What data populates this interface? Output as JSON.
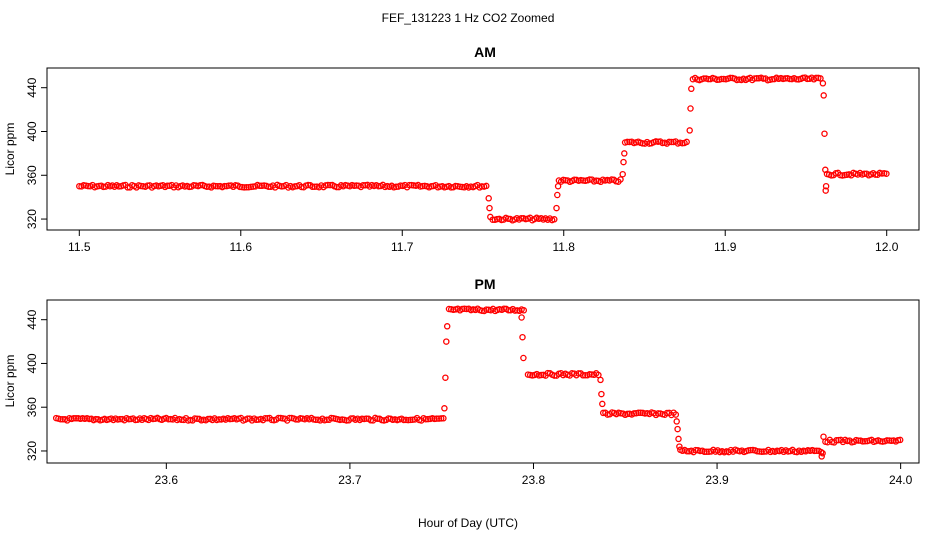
{
  "title": "FEF_131223  1 Hz CO2 Zoomed",
  "xlabel": "Hour of Day (UTC)",
  "chart_data": [
    {
      "type": "scatter",
      "title": "AM",
      "ylabel": "Licor ppm",
      "xlim": [
        11.48,
        12.02
      ],
      "ylim": [
        310,
        458
      ],
      "xticks": [
        11.5,
        11.6,
        11.7,
        11.8,
        11.9,
        12.0
      ],
      "xtick_labels": [
        "11.5",
        "11.6",
        "11.7",
        "11.8",
        "11.9",
        "12.0"
      ],
      "yticks": [
        320,
        360,
        400,
        440
      ],
      "ytick_labels": [
        "320",
        "360",
        "400",
        "440"
      ],
      "marker_color": "#ff0000",
      "series": [
        {
          "name": "",
          "segments": [
            {
              "x0": 11.5,
              "x1": 11.753,
              "y": 350
            },
            {
              "x0": 11.756,
              "x1": 11.795,
              "y": 320
            },
            {
              "x0": 11.797,
              "x1": 11.836,
              "y": 355
            },
            {
              "x0": 11.838,
              "x1": 11.877,
              "y": 390
            },
            {
              "x0": 11.88,
              "x1": 11.96,
              "y": 448
            },
            {
              "x0": 11.963,
              "x1": 12.0,
              "y": 361
            }
          ],
          "transitions": [
            {
              "x": 11.7535,
              "y": 339
            },
            {
              "x": 11.754,
              "y": 330
            },
            {
              "x": 11.7545,
              "y": 322
            },
            {
              "x": 11.7955,
              "y": 330
            },
            {
              "x": 11.796,
              "y": 342
            },
            {
              "x": 11.7965,
              "y": 350
            },
            {
              "x": 11.8365,
              "y": 361
            },
            {
              "x": 11.837,
              "y": 372
            },
            {
              "x": 11.8375,
              "y": 380
            },
            {
              "x": 11.878,
              "y": 401
            },
            {
              "x": 11.8785,
              "y": 421
            },
            {
              "x": 11.879,
              "y": 439
            },
            {
              "x": 11.9605,
              "y": 444
            },
            {
              "x": 11.961,
              "y": 433
            },
            {
              "x": 11.9615,
              "y": 398
            },
            {
              "x": 11.962,
              "y": 365
            },
            {
              "x": 11.9622,
              "y": 346
            },
            {
              "x": 11.9625,
              "y": 350
            }
          ]
        }
      ]
    },
    {
      "type": "scatter",
      "title": "PM",
      "ylabel": "Licor ppm",
      "xlim": [
        23.535,
        24.01
      ],
      "ylim": [
        309,
        458
      ],
      "xticks": [
        23.6,
        23.7,
        23.8,
        23.9,
        24.0
      ],
      "xtick_labels": [
        "23.6",
        "23.7",
        "23.8",
        "23.9",
        "24.0"
      ],
      "yticks": [
        320,
        360,
        400,
        440
      ],
      "ytick_labels": [
        "320",
        "360",
        "400",
        "440"
      ],
      "marker_color": "#ff0000",
      "series": [
        {
          "name": "",
          "segments": [
            {
              "x0": 23.54,
              "x1": 23.751,
              "y": 349
            },
            {
              "x0": 23.754,
              "x1": 23.795,
              "y": 449
            },
            {
              "x0": 23.797,
              "x1": 23.836,
              "y": 390
            },
            {
              "x0": 23.838,
              "x1": 23.878,
              "y": 354
            },
            {
              "x0": 23.88,
              "x1": 23.957,
              "y": 320
            },
            {
              "x0": 23.959,
              "x1": 24.0,
              "y": 329
            }
          ],
          "transitions": [
            {
              "x": 23.7515,
              "y": 359
            },
            {
              "x": 23.752,
              "y": 387
            },
            {
              "x": 23.7525,
              "y": 420
            },
            {
              "x": 23.753,
              "y": 434
            },
            {
              "x": 23.7935,
              "y": 442
            },
            {
              "x": 23.794,
              "y": 424
            },
            {
              "x": 23.7945,
              "y": 405
            },
            {
              "x": 23.8365,
              "y": 385
            },
            {
              "x": 23.837,
              "y": 372
            },
            {
              "x": 23.8375,
              "y": 363
            },
            {
              "x": 23.878,
              "y": 347
            },
            {
              "x": 23.8785,
              "y": 340
            },
            {
              "x": 23.879,
              "y": 331
            },
            {
              "x": 23.8795,
              "y": 324
            },
            {
              "x": 23.957,
              "y": 315
            },
            {
              "x": 23.9575,
              "y": 318
            },
            {
              "x": 23.958,
              "y": 333
            }
          ]
        }
      ]
    }
  ]
}
